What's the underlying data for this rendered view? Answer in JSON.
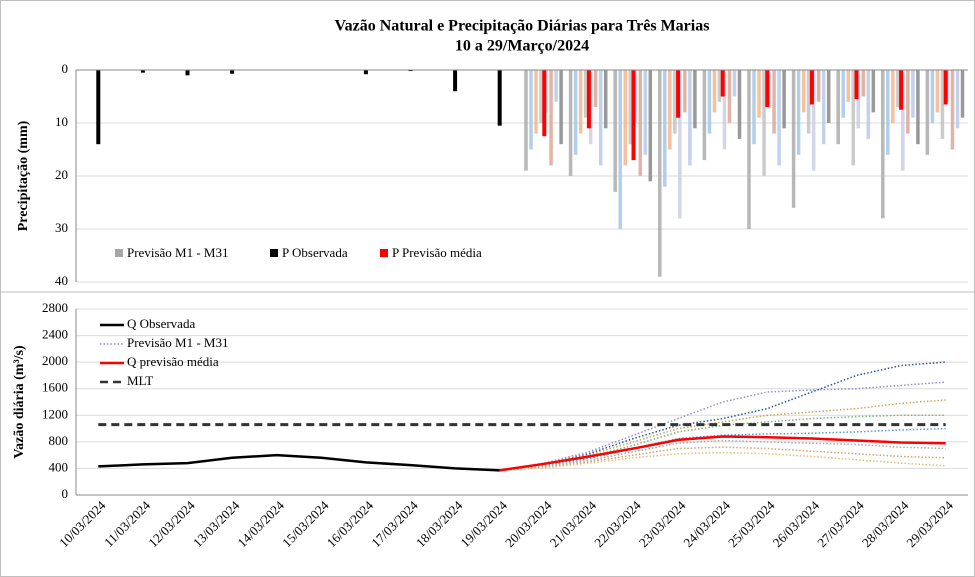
{
  "chart_data": [
    {
      "type": "bar",
      "title": "Vazão Natural e Precipitação Diárias para Três Marias",
      "subtitle": "10 a 29/Março/2024",
      "ylabel": "Precipitação (mm)",
      "ylim": [
        0,
        40
      ],
      "yticks": [
        0,
        10,
        20,
        30,
        40
      ],
      "inverted": true,
      "series": [
        {
          "name": "Previsão M1 - M31",
          "color": "#a6a6a6",
          "colors": [
            "#a6a6a6",
            "#9dc3e6",
            "#f4b183",
            "#bfbfbf",
            "#c9c9e6",
            "#d9a38f",
            "#b4c7e7",
            "#7f7f7f"
          ],
          "values": [
            null,
            null,
            null,
            null,
            null,
            null,
            null,
            null,
            null,
            null,
            [
              19,
              15,
              12,
              10,
              8,
              18,
              6,
              14
            ],
            [
              20,
              16,
              12,
              9,
              14,
              7,
              18,
              11
            ],
            [
              23,
              30,
              18,
              14,
              10,
              20,
              16,
              21
            ],
            [
              39,
              22,
              15,
              12,
              28,
              8,
              18,
              11
            ],
            [
              17,
              12,
              8,
              6,
              15,
              10,
              5,
              13
            ],
            [
              30,
              14,
              9,
              20,
              7,
              12,
              18,
              11
            ],
            [
              26,
              16,
              8,
              12,
              19,
              6,
              14,
              10
            ],
            [
              14,
              9,
              6,
              18,
              11,
              5,
              13,
              8
            ],
            [
              28,
              16,
              10,
              7,
              19,
              12,
              9,
              14
            ],
            [
              16,
              10,
              8,
              13,
              6,
              15,
              11,
              9
            ]
          ]
        },
        {
          "name": "P Observada",
          "color": "#000000",
          "values": [
            14,
            0.5,
            1,
            0.7,
            0,
            0,
            0.8,
            0.2,
            4,
            10.5,
            null,
            null,
            null,
            null,
            null,
            null,
            null,
            null,
            null,
            null
          ]
        },
        {
          "name": "P Previsão média",
          "color": "#ff0000",
          "values": [
            null,
            null,
            null,
            null,
            null,
            null,
            null,
            null,
            null,
            null,
            12.5,
            11,
            17,
            9,
            5,
            7,
            6.5,
            5.5,
            7.5,
            6.5
          ]
        }
      ]
    },
    {
      "type": "line",
      "ylabel": "Vazão diária (m³/s)",
      "ylim": [
        0,
        2800
      ],
      "yticks": [
        0,
        400,
        800,
        1200,
        1600,
        2000,
        2400,
        2800
      ],
      "categories": [
        "10/03/2024",
        "11/03/2024",
        "12/03/2024",
        "13/03/2024",
        "14/03/2024",
        "15/03/2024",
        "16/03/2024",
        "17/03/2024",
        "18/03/2024",
        "19/03/2024",
        "20/03/2024",
        "21/03/2024",
        "22/03/2024",
        "23/03/2024",
        "24/03/2024",
        "25/03/2024",
        "26/03/2024",
        "27/03/2024",
        "28/03/2024",
        "29/03/2024"
      ],
      "series": [
        {
          "name": "Q Observada",
          "color": "#000000",
          "values": [
            430,
            460,
            480,
            560,
            600,
            560,
            490,
            450,
            400,
            370,
            null,
            null,
            null,
            null,
            null,
            null,
            null,
            null,
            null,
            null
          ]
        },
        {
          "name": "Previsão M1 - M31",
          "color": "#8f8fcf",
          "dash": "dotted",
          "colors": [
            "#2f5597",
            "#8f8fcf",
            "#c9a65a",
            "#7fb27f",
            "#5b9bd5",
            "#a9a9a9",
            "#d6a36e",
            "#e0c070"
          ],
          "values": [
            [
              null,
              null,
              null,
              null,
              null,
              null,
              null,
              null,
              null,
              370,
              460,
              620,
              850,
              1050,
              1150,
              1300,
              1550,
              1800,
              1950,
              2000
            ],
            [
              null,
              null,
              null,
              null,
              null,
              null,
              null,
              null,
              null,
              370,
              480,
              650,
              900,
              1150,
              1400,
              1550,
              1580,
              1600,
              1650,
              1700
            ],
            [
              null,
              null,
              null,
              null,
              null,
              null,
              null,
              null,
              null,
              370,
              470,
              600,
              800,
              1000,
              1100,
              1200,
              1250,
              1300,
              1380,
              1430
            ],
            [
              null,
              null,
              null,
              null,
              null,
              null,
              null,
              null,
              null,
              370,
              450,
              570,
              750,
              950,
              1050,
              1100,
              1150,
              1180,
              1200,
              1200
            ],
            [
              null,
              null,
              null,
              null,
              null,
              null,
              null,
              null,
              null,
              370,
              440,
              550,
              700,
              850,
              900,
              920,
              930,
              950,
              980,
              1000
            ],
            [
              null,
              null,
              null,
              null,
              null,
              null,
              null,
              null,
              null,
              370,
              430,
              520,
              650,
              780,
              820,
              800,
              780,
              760,
              720,
              700
            ],
            [
              null,
              null,
              null,
              null,
              null,
              null,
              null,
              null,
              null,
              370,
              420,
              500,
              600,
              700,
              720,
              700,
              660,
              620,
              580,
              560
            ],
            [
              null,
              null,
              null,
              null,
              null,
              null,
              null,
              null,
              null,
              370,
              410,
              480,
              560,
              620,
              640,
              620,
              580,
              530,
              480,
              440
            ]
          ]
        },
        {
          "name": "Q previsão média",
          "color": "#ff0000",
          "values": [
            null,
            null,
            null,
            null,
            null,
            null,
            null,
            null,
            null,
            370,
            470,
            580,
            700,
            830,
            880,
            870,
            850,
            820,
            790,
            780
          ]
        },
        {
          "name": "MLT",
          "color": "#333333",
          "dash": "dashed",
          "values": [
            1060,
            1060,
            1060,
            1060,
            1060,
            1060,
            1060,
            1060,
            1060,
            1060,
            1060,
            1060,
            1060,
            1060,
            1060,
            1060,
            1060,
            1060,
            1060,
            1060
          ]
        }
      ]
    }
  ]
}
